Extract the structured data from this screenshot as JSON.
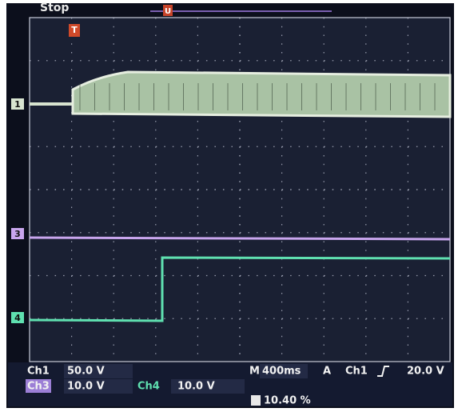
{
  "header": {
    "status": "Stop",
    "trigger_marker": "T",
    "position_marker": "U"
  },
  "channel_markers": {
    "ch1": "1",
    "ch3": "3",
    "ch4": "4"
  },
  "readout": {
    "ch1_label": "Ch1",
    "ch1_scale": "50.0 V",
    "ch3_label": "Ch3",
    "ch3_scale": "10.0 V",
    "ch4_label": "Ch4",
    "ch4_scale": "10.0 V",
    "timebase_label": "M",
    "timebase": "400ms",
    "trigger_label": "A",
    "trigger_source": "Ch1",
    "trigger_level": "20.0 V",
    "trigger_position": "10.40 %"
  }
}
